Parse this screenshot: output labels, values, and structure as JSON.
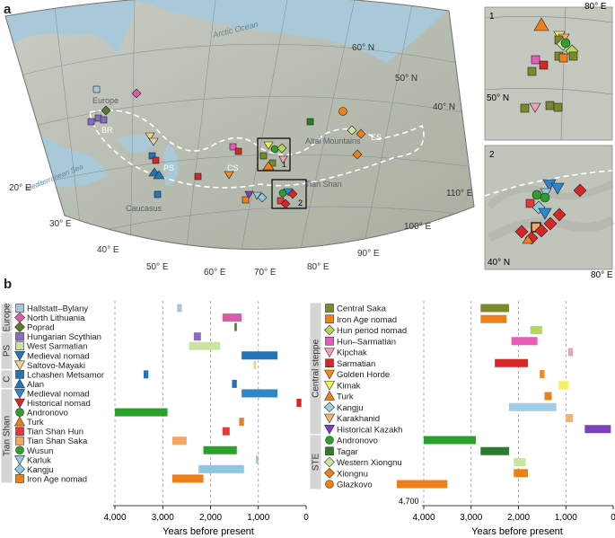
{
  "panel_a": {
    "letter": "a",
    "graticule": {
      "lat": [
        "20° E",
        "30° E",
        "40° E",
        "50° E",
        "60° E",
        "70° E",
        "80° E",
        "90° E",
        "100° E",
        "110° E",
        "60° N",
        "50° N",
        "40° N"
      ]
    },
    "places": [
      "Arctic Ocean",
      "Europe",
      "BR",
      "Mediterranean Sea",
      "PS",
      "Caucasus",
      "CS",
      "Altai Mountains",
      "ES",
      "Tian Shan"
    ],
    "inset1": {
      "num": "1",
      "labels": [
        "80° E",
        "50° N"
      ]
    },
    "inset2": {
      "num": "2",
      "labels": [
        "40° N",
        "80° E"
      ]
    },
    "box_labels": [
      "1",
      "2"
    ]
  },
  "panel_b": {
    "letter": "b",
    "xlabel": "Years before present",
    "ticks": [
      "4,000",
      "3,000",
      "2,000",
      "1,000",
      "0"
    ],
    "annotation": "4,700",
    "left_groups": [
      "Europe",
      "PS",
      "C",
      "Tian Shan"
    ],
    "right_groups": [
      "Central steppe",
      "STE"
    ],
    "left_entries": [
      {
        "name": "Hallstatt–Bylany",
        "color": "#a9c6dd",
        "shape": "square",
        "start": 2700,
        "end": 2600
      },
      {
        "name": "North Lithuania",
        "color": "#dd5aa8",
        "shape": "diamond",
        "start": 1750,
        "end": 1350
      },
      {
        "name": "Poprad",
        "color": "#5a7a2a",
        "shape": "diamond",
        "start": 1500,
        "end": 1450
      },
      {
        "name": "Hungarian Scythian",
        "color": "#8a6cc0",
        "shape": "square",
        "start": 2350,
        "end": 2200
      },
      {
        "name": "West Sarmatian",
        "color": "#c8e6a0",
        "shape": "square",
        "start": 2450,
        "end": 1800
      },
      {
        "name": "Medieval nomad",
        "color": "#2474b8",
        "shape": "tri-down",
        "start": 1350,
        "end": 600
      },
      {
        "name": "Saltovo-Mayaki",
        "color": "#e8d490",
        "shape": "tri-down",
        "start": 1100,
        "end": 1050
      },
      {
        "name": "Lchashen Metsamor",
        "color": "#2474b8",
        "shape": "square",
        "start": 3400,
        "end": 3300
      },
      {
        "name": "Alan",
        "color": "#2474b8",
        "shape": "tri-up",
        "start": 1550,
        "end": 1450
      },
      {
        "name": "Medieval nomad",
        "color": "#2f86c9",
        "shape": "tri-down",
        "start": 1350,
        "end": 600
      },
      {
        "name": "Historical nomad",
        "color": "#d62728",
        "shape": "tri-down",
        "start": 200,
        "end": 100
      },
      {
        "name": "Andronovo",
        "color": "#2ca02c",
        "shape": "circle",
        "start": 4000,
        "end": 2900
      },
      {
        "name": "Turk",
        "color": "#ee7f1a",
        "shape": "tri-up",
        "start": 1400,
        "end": 1300
      },
      {
        "name": "Tian Shan Hun",
        "color": "#e23a3a",
        "shape": "square",
        "start": 1750,
        "end": 1600
      },
      {
        "name": "Tian Shan Saka",
        "color": "#f5a865",
        "shape": "square",
        "start": 2800,
        "end": 2500
      },
      {
        "name": "Wusun",
        "color": "#2ca02c",
        "shape": "circle",
        "start": 2150,
        "end": 1450
      },
      {
        "name": "Karluk",
        "color": "#9cc6e0",
        "shape": "tri-down",
        "start": 1050,
        "end": 1000
      },
      {
        "name": "Kangju",
        "color": "#8fc6e0",
        "shape": "diamond",
        "start": 2250,
        "end": 1300
      },
      {
        "name": "Iron Age nomad",
        "color": "#ee7f1a",
        "shape": "square",
        "start": 2800,
        "end": 2150
      }
    ],
    "right_entries": [
      {
        "name": "Central Saka",
        "color": "#7a8a2a",
        "shape": "square",
        "start": 2800,
        "end": 2200
      },
      {
        "name": "Iron Age nomad",
        "color": "#ee7f1a",
        "shape": "square",
        "start": 2800,
        "end": 2250
      },
      {
        "name": "Hun period nomad",
        "color": "#b5d855",
        "shape": "diamond",
        "start": 1750,
        "end": 1500
      },
      {
        "name": "Hun–Sarmatian",
        "color": "#e85cb8",
        "shape": "square",
        "start": 2150,
        "end": 1600
      },
      {
        "name": "Kipchak",
        "color": "#f2a0b8",
        "shape": "tri-down",
        "start": 950,
        "end": 850
      },
      {
        "name": "Sarmatian",
        "color": "#d62728",
        "shape": "square",
        "start": 2500,
        "end": 1800
      },
      {
        "name": "Golden Horde",
        "color": "#f08a1a",
        "shape": "tri-down",
        "start": 1550,
        "end": 1450
      },
      {
        "name": "Kimak",
        "color": "#f5f060",
        "shape": "tri-down",
        "start": 1150,
        "end": 950
      },
      {
        "name": "Turk",
        "color": "#ee7f1a",
        "shape": "tri-up",
        "start": 1450,
        "end": 1300
      },
      {
        "name": "Kangju",
        "color": "#9fcde6",
        "shape": "diamond",
        "start": 2200,
        "end": 1200
      },
      {
        "name": "Karakhanid",
        "color": "#f5b070",
        "shape": "tri-down",
        "start": 1000,
        "end": 850
      },
      {
        "name": "Historical Kazakh",
        "color": "#7b3fc0",
        "shape": "tri-down",
        "start": 600,
        "end": 50
      },
      {
        "name": "Andronovo",
        "color": "#2ca02c",
        "shape": "circle",
        "start": 4000,
        "end": 2900
      },
      {
        "name": "Tagar",
        "color": "#2f7a2f",
        "shape": "square",
        "start": 2800,
        "end": 2200
      },
      {
        "name": "Western Xiongnu",
        "color": "#c8e6a0",
        "shape": "diamond",
        "start": 2100,
        "end": 1850
      },
      {
        "name": "Xiongnu",
        "color": "#ee7f1a",
        "shape": "diamond",
        "start": 2100,
        "end": 1800
      },
      {
        "name": "Glazkovo",
        "color": "#ee7f1a",
        "shape": "circle",
        "start": 4700,
        "end": 3500
      }
    ]
  }
}
